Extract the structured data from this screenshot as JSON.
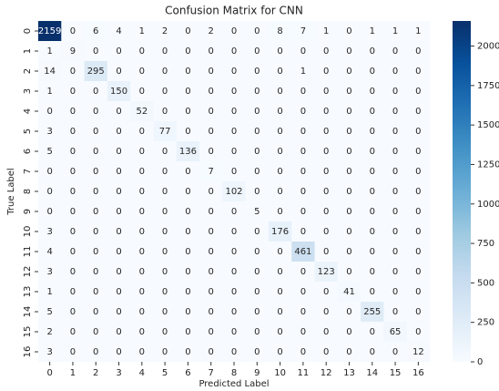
{
  "chart_data": {
    "type": "heatmap",
    "title": "Confusion Matrix for CNN",
    "xlabel": "Predicted Label",
    "ylabel": "True Label",
    "x_categories": [
      0,
      1,
      2,
      3,
      4,
      5,
      6,
      7,
      8,
      9,
      10,
      11,
      12,
      13,
      14,
      15,
      16
    ],
    "y_categories": [
      0,
      1,
      2,
      3,
      4,
      5,
      6,
      7,
      8,
      9,
      10,
      11,
      12,
      13,
      14,
      15,
      16
    ],
    "values": [
      [
        2159,
        0,
        6,
        4,
        1,
        2,
        0,
        2,
        0,
        0,
        8,
        7,
        1,
        0,
        1,
        1,
        1
      ],
      [
        1,
        9,
        0,
        0,
        0,
        0,
        0,
        0,
        0,
        0,
        0,
        0,
        0,
        0,
        0,
        0,
        0
      ],
      [
        14,
        0,
        295,
        0,
        0,
        0,
        0,
        0,
        0,
        0,
        0,
        1,
        0,
        0,
        0,
        0,
        0
      ],
      [
        1,
        0,
        0,
        150,
        0,
        0,
        0,
        0,
        0,
        0,
        0,
        0,
        0,
        0,
        0,
        0,
        0
      ],
      [
        0,
        0,
        0,
        0,
        52,
        0,
        0,
        0,
        0,
        0,
        0,
        0,
        0,
        0,
        0,
        0,
        0
      ],
      [
        3,
        0,
        0,
        0,
        0,
        77,
        0,
        0,
        0,
        0,
        0,
        0,
        0,
        0,
        0,
        0,
        0
      ],
      [
        5,
        0,
        0,
        0,
        0,
        0,
        136,
        0,
        0,
        0,
        0,
        0,
        0,
        0,
        0,
        0,
        0
      ],
      [
        0,
        0,
        0,
        0,
        0,
        0,
        0,
        7,
        0,
        0,
        0,
        0,
        0,
        0,
        0,
        0,
        0
      ],
      [
        0,
        0,
        0,
        0,
        0,
        0,
        0,
        0,
        102,
        0,
        0,
        0,
        0,
        0,
        0,
        0,
        0
      ],
      [
        0,
        0,
        0,
        0,
        0,
        0,
        0,
        0,
        0,
        5,
        0,
        0,
        0,
        0,
        0,
        0,
        0
      ],
      [
        3,
        0,
        0,
        0,
        0,
        0,
        0,
        0,
        0,
        0,
        176,
        0,
        0,
        0,
        0,
        0,
        0
      ],
      [
        4,
        0,
        0,
        0,
        0,
        0,
        0,
        0,
        0,
        0,
        0,
        461,
        0,
        0,
        0,
        0,
        0
      ],
      [
        3,
        0,
        0,
        0,
        0,
        0,
        0,
        0,
        0,
        0,
        0,
        0,
        123,
        0,
        0,
        0,
        0
      ],
      [
        1,
        0,
        0,
        0,
        0,
        0,
        0,
        0,
        0,
        0,
        0,
        0,
        0,
        41,
        0,
        0,
        0
      ],
      [
        5,
        0,
        0,
        0,
        0,
        0,
        0,
        0,
        0,
        0,
        0,
        0,
        0,
        0,
        255,
        0,
        0
      ],
      [
        2,
        0,
        0,
        0,
        0,
        0,
        0,
        0,
        0,
        0,
        0,
        0,
        0,
        0,
        0,
        65,
        0
      ],
      [
        3,
        0,
        0,
        0,
        0,
        0,
        0,
        0,
        0,
        0,
        0,
        0,
        0,
        0,
        0,
        0,
        12
      ]
    ],
    "colormap": [
      "#f7fbff",
      "#deebf7",
      "#c6dbef",
      "#9ecae1",
      "#6baed6",
      "#4292c6",
      "#2171b5",
      "#08519c",
      "#08306b"
    ],
    "zlim": [
      0,
      2159
    ],
    "zticks": [
      0,
      250,
      500,
      750,
      1000,
      1250,
      1500,
      1750,
      2000
    ]
  }
}
